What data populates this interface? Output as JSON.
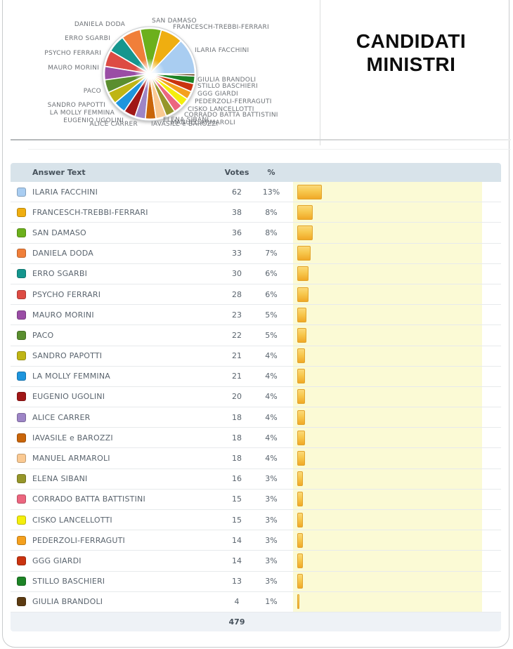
{
  "title": {
    "line1": "CANDIDATI",
    "line2": "MINISTRI"
  },
  "table": {
    "columns": {
      "answer": "Answer Text",
      "votes": "Votes",
      "percent": "%"
    },
    "total_votes": "479"
  },
  "colors": {
    "bar_fill": "#f2b134",
    "bar_track": "#fbfad5",
    "header_bg": "#d8e3ea",
    "footer_bg": "#eef2f6"
  },
  "chart_data": {
    "type": "pie",
    "title": "CANDIDATI MINISTRI",
    "total": 479,
    "start_angle_deg": 0,
    "direction": "counterclockwise",
    "legend_position": "around-pie-and-table",
    "items": [
      {
        "label": "ILARIA FACCHINI",
        "votes": 62,
        "percent": "13%",
        "color": "#a9cdf1"
      },
      {
        "label": "FRANCESCH-TREBBI-FERRARI",
        "votes": 38,
        "percent": "8%",
        "color": "#efae10"
      },
      {
        "label": "SAN DAMASO",
        "votes": 36,
        "percent": "8%",
        "color": "#6cb01c"
      },
      {
        "label": "DANIELA DODA",
        "votes": 33,
        "percent": "7%",
        "color": "#f07f3a"
      },
      {
        "label": "ERRO SGARBI",
        "votes": 30,
        "percent": "6%",
        "color": "#15968e"
      },
      {
        "label": "PSYCHO FERRARI",
        "votes": 28,
        "percent": "6%",
        "color": "#dd4b43"
      },
      {
        "label": "MAURO MORINI",
        "votes": 23,
        "percent": "5%",
        "color": "#9a4da5"
      },
      {
        "label": "PACO",
        "votes": 22,
        "percent": "5%",
        "color": "#5a8e2f"
      },
      {
        "label": "SANDRO PAPOTTI",
        "votes": 21,
        "percent": "4%",
        "color": "#bfb515"
      },
      {
        "label": "LA MOLLY FEMMINA",
        "votes": 21,
        "percent": "4%",
        "color": "#1e95dd"
      },
      {
        "label": "EUGENIO UGOLINI",
        "votes": 20,
        "percent": "4%",
        "color": "#a01717"
      },
      {
        "label": "ALICE CARRER",
        "votes": 18,
        "percent": "4%",
        "color": "#9d85c6"
      },
      {
        "label": "IAVASILE e BAROZZI",
        "votes": 18,
        "percent": "4%",
        "color": "#c96509"
      },
      {
        "label": "MANUEL ARMAROLI",
        "votes": 18,
        "percent": "4%",
        "color": "#fac992"
      },
      {
        "label": "ELENA SIBANI",
        "votes": 16,
        "percent": "3%",
        "color": "#96962a"
      },
      {
        "label": "CORRADO BATTA BATTISTINI",
        "votes": 15,
        "percent": "3%",
        "color": "#ec667f"
      },
      {
        "label": "CISKO LANCELLOTTI",
        "votes": 15,
        "percent": "3%",
        "color": "#f4ee0c"
      },
      {
        "label": "PEDERZOLI-FERRAGUTI",
        "votes": 14,
        "percent": "3%",
        "color": "#f4a01e"
      },
      {
        "label": "GGG GIARDI",
        "votes": 14,
        "percent": "3%",
        "color": "#ca330f"
      },
      {
        "label": "STILLO BASCHIERI",
        "votes": 13,
        "percent": "3%",
        "color": "#1d8326"
      },
      {
        "label": "GIULIA BRANDOLI",
        "votes": 4,
        "percent": "1%",
        "color": "#5c3b12"
      }
    ]
  }
}
